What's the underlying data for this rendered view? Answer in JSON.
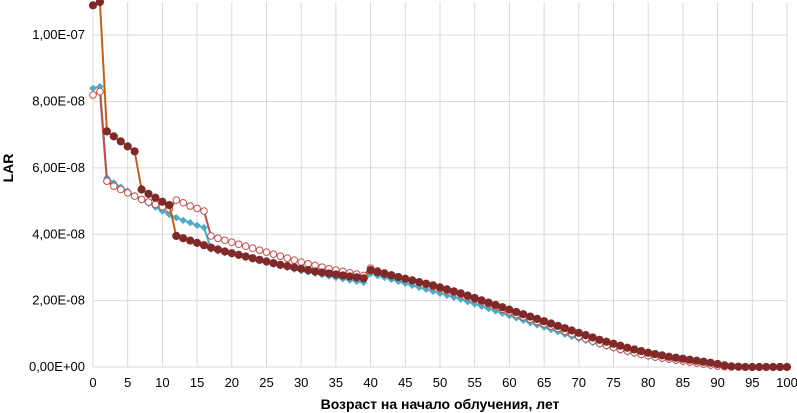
{
  "chart_data": {
    "type": "line",
    "title": "",
    "xlabel": "Возраст на начало облучения, лет",
    "ylabel": "LAR",
    "xlim": [
      0,
      100
    ],
    "ylim": [
      0,
      1.1e-07
    ],
    "x_ticks": [
      0,
      5,
      10,
      15,
      20,
      25,
      30,
      35,
      40,
      45,
      50,
      55,
      60,
      65,
      70,
      75,
      80,
      85,
      90,
      95,
      100
    ],
    "y_ticks": [
      0,
      2e-08,
      4e-08,
      6e-08,
      8e-08,
      1e-07
    ],
    "y_tick_labels": [
      "0,00E+00",
      "2,00E-08",
      "4,00E-08",
      "6,00E-08",
      "8,00E-08",
      "1,00E-07"
    ],
    "grid": true,
    "legend": "none",
    "colors": {
      "cyan": "#4bacc6",
      "pink": "#c0504d",
      "dark": "#7f2a28",
      "dark_line": "#c0601a",
      "grid": "#d9d9d9"
    },
    "x": [
      0,
      1,
      2,
      3,
      4,
      5,
      6,
      7,
      8,
      9,
      10,
      11,
      12,
      13,
      14,
      15,
      16,
      17,
      18,
      19,
      20,
      21,
      22,
      23,
      24,
      25,
      26,
      27,
      28,
      29,
      30,
      31,
      32,
      33,
      34,
      35,
      36,
      37,
      38,
      39,
      40,
      41,
      42,
      43,
      44,
      45,
      46,
      47,
      48,
      49,
      50,
      51,
      52,
      53,
      54,
      55,
      56,
      57,
      58,
      59,
      60,
      61,
      62,
      63,
      64,
      65,
      66,
      67,
      68,
      69,
      70,
      71,
      72,
      73,
      74,
      75,
      76,
      77,
      78,
      79,
      80,
      81,
      82,
      83,
      84,
      85,
      86,
      87,
      88,
      89,
      90,
      91,
      92,
      93,
      94,
      95,
      96,
      97,
      98,
      99,
      100
    ],
    "series": [
      {
        "style": "cyan-diamond",
        "values": [
          8.4e-08,
          8.45e-08,
          5.7e-08,
          5.55e-08,
          5.42e-08,
          5.3e-08,
          5.17e-08,
          5.05e-08,
          4.93e-08,
          4.82e-08,
          4.7e-08,
          4.6e-08,
          4.5e-08,
          4.42e-08,
          4.35e-08,
          4.27e-08,
          4.2e-08,
          3.55e-08,
          3.5e-08,
          3.45e-08,
          3.4e-08,
          3.35e-08,
          3.3e-08,
          3.25e-08,
          3.2e-08,
          3.15e-08,
          3.1e-08,
          3.05e-08,
          3e-08,
          2.95e-08,
          2.9e-08,
          2.86e-08,
          2.82e-08,
          2.78e-08,
          2.74e-08,
          2.7e-08,
          2.66e-08,
          2.62e-08,
          2.58e-08,
          2.55e-08,
          2.82e-08,
          2.75e-08,
          2.7e-08,
          2.64e-08,
          2.58e-08,
          2.52e-08,
          2.46e-08,
          2.4e-08,
          2.34e-08,
          2.28e-08,
          2.22e-08,
          2.16e-08,
          2.1e-08,
          2.04e-08,
          1.97e-08,
          1.9e-08,
          1.83e-08,
          1.76e-08,
          1.69e-08,
          1.62e-08,
          1.55e-08,
          1.48e-08,
          1.41e-08,
          1.34e-08,
          1.27e-08,
          1.2e-08,
          1.13e-08,
          1.06e-08,
          9.9e-09,
          9.2e-09,
          8.6e-09,
          8e-09,
          7.4e-09,
          6.8e-09,
          6.2e-09,
          5.6e-09,
          5e-09,
          4.5e-09,
          4e-09,
          3.6e-09,
          3.2e-09,
          2.8e-09,
          2.5e-09,
          2.2e-09,
          1.9e-09,
          1.6e-09,
          1.3e-09,
          1e-09,
          7e-10,
          4e-10,
          2e-10,
          1e-10,
          0,
          0,
          0,
          0,
          0,
          0,
          0,
          0,
          0
        ]
      },
      {
        "style": "pink-open-circle",
        "values": [
          8.2e-08,
          8.3e-08,
          5.6e-08,
          5.45e-08,
          5.35e-08,
          5.25e-08,
          5.15e-08,
          5.05e-08,
          4.97e-08,
          4.9e-08,
          4.83e-08,
          4.76e-08,
          5.03e-08,
          4.95e-08,
          4.85e-08,
          4.78e-08,
          4.7e-08,
          3.95e-08,
          3.88e-08,
          3.82e-08,
          3.76e-08,
          3.7e-08,
          3.64e-08,
          3.58e-08,
          3.52e-08,
          3.46e-08,
          3.4e-08,
          3.34e-08,
          3.28e-08,
          3.22e-08,
          3.16e-08,
          3.11e-08,
          3.06e-08,
          3.01e-08,
          2.96e-08,
          2.92e-08,
          2.88e-08,
          2.84e-08,
          2.8e-08,
          2.76e-08,
          2.98e-08,
          2.9e-08,
          2.84e-08,
          2.78e-08,
          2.72e-08,
          2.66e-08,
          2.6e-08,
          2.54e-08,
          2.48e-08,
          2.42e-08,
          2.36e-08,
          2.3e-08,
          2.24e-08,
          2.18e-08,
          2.11e-08,
          2.04e-08,
          1.97e-08,
          1.9e-08,
          1.82e-08,
          1.74e-08,
          1.66e-08,
          1.58e-08,
          1.51e-08,
          1.44e-08,
          1.37e-08,
          1.3e-08,
          1.23e-08,
          1.16e-08,
          1.08e-08,
          1e-08,
          9.2e-09,
          8.5e-09,
          7.8e-09,
          7.1e-09,
          6.5e-09,
          5.9e-09,
          5.3e-09,
          4.8e-09,
          4.3e-09,
          3.8e-09,
          3.4e-09,
          3e-09,
          2.7e-09,
          2.4e-09,
          2.1e-09,
          1.8e-09,
          1.5e-09,
          1.2e-09,
          9e-10,
          6e-10,
          3e-10,
          1e-10,
          0,
          0,
          0,
          0,
          0,
          0,
          0,
          0,
          0
        ]
      },
      {
        "style": "dark-filled-circle",
        "values": [
          1.09e-07,
          1.1e-07,
          7.1e-08,
          6.95e-08,
          6.8e-08,
          6.65e-08,
          6.5e-08,
          5.35e-08,
          5.22e-08,
          5.1e-08,
          4.98e-08,
          4.88e-08,
          3.95e-08,
          3.88e-08,
          3.81e-08,
          3.74e-08,
          3.67e-08,
          3.6e-08,
          3.54e-08,
          3.48e-08,
          3.43e-08,
          3.38e-08,
          3.33e-08,
          3.28e-08,
          3.23e-08,
          3.18e-08,
          3.13e-08,
          3.08e-08,
          3.04e-08,
          3e-08,
          2.96e-08,
          2.92e-08,
          2.88e-08,
          2.85e-08,
          2.82e-08,
          2.79e-08,
          2.76e-08,
          2.73e-08,
          2.7e-08,
          2.67e-08,
          2.92e-08,
          2.86e-08,
          2.81e-08,
          2.76e-08,
          2.71e-08,
          2.66e-08,
          2.61e-08,
          2.56e-08,
          2.51e-08,
          2.46e-08,
          2.4e-08,
          2.34e-08,
          2.28e-08,
          2.22e-08,
          2.15e-08,
          2.08e-08,
          2.01e-08,
          1.94e-08,
          1.87e-08,
          1.8e-08,
          1.73e-08,
          1.66e-08,
          1.59e-08,
          1.52e-08,
          1.45e-08,
          1.38e-08,
          1.31e-08,
          1.24e-08,
          1.17e-08,
          1.1e-08,
          1.03e-08,
          9.6e-09,
          8.9e-09,
          8.2e-09,
          7.6e-09,
          7e-09,
          6.4e-09,
          5.8e-09,
          5.3e-09,
          4.8e-09,
          4.3e-09,
          3.9e-09,
          3.5e-09,
          3.1e-09,
          2.8e-09,
          2.5e-09,
          2.2e-09,
          1.9e-09,
          1.6e-09,
          1.3e-09,
          9e-10,
          5e-10,
          2e-10,
          1e-10,
          0,
          0,
          0,
          0,
          0,
          0,
          0
        ]
      }
    ]
  }
}
